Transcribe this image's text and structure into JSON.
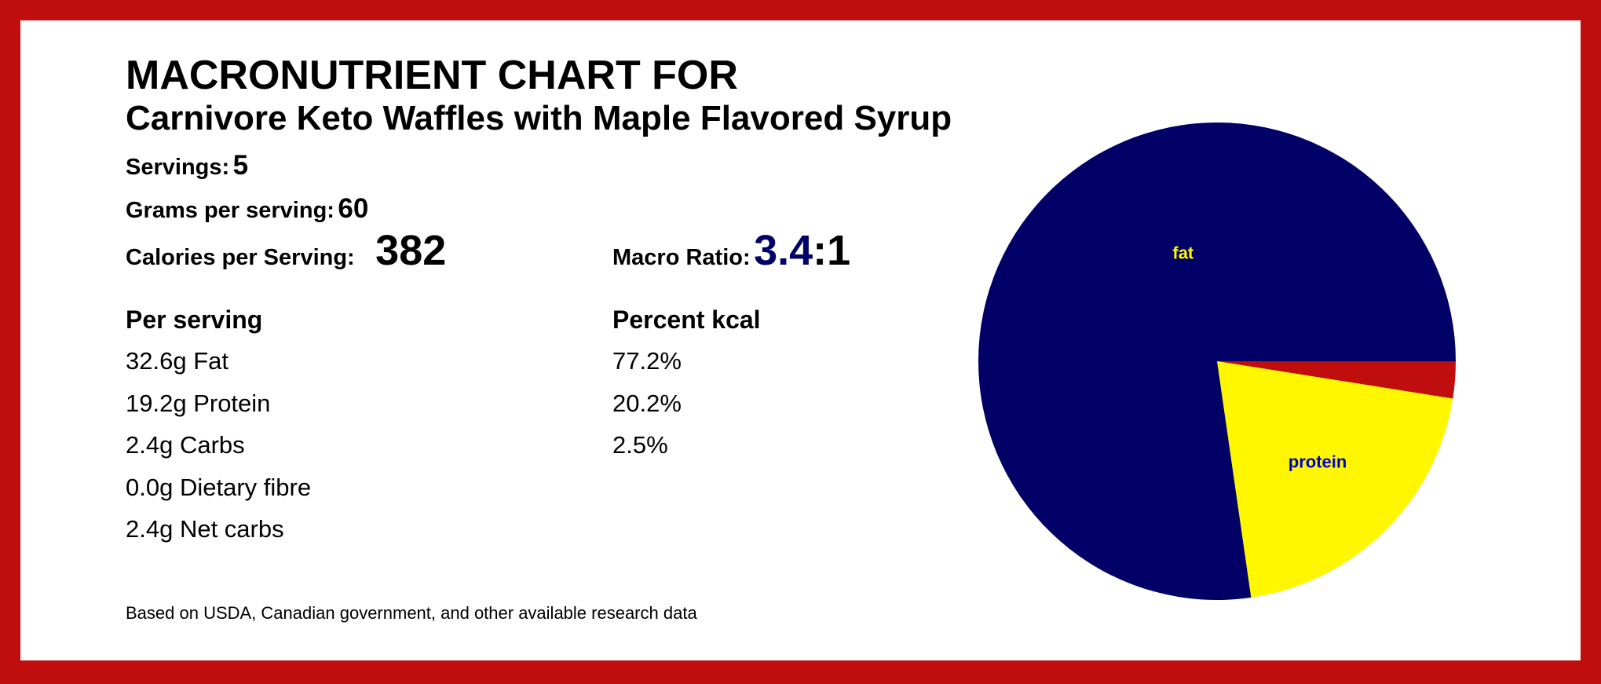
{
  "title": "MACRONUTRIENT CHART FOR",
  "recipe_name": "Carnivore Keto Waffles with Maple Flavored Syrup",
  "servings": {
    "label": "Servings:",
    "value": "5"
  },
  "grams_per_serving": {
    "label": "Grams per serving:",
    "value": "60"
  },
  "calories_per_serving": {
    "label": "Calories per Serving:",
    "value": "382"
  },
  "macro_ratio": {
    "label": "Macro Ratio:",
    "value": "3.4",
    "suffix": ":1"
  },
  "per_serving": {
    "header": "Per serving",
    "rows": [
      "32.6g Fat",
      "19.2g Protein",
      "2.4g Carbs",
      "0.0g Dietary fibre",
      "2.4g Net carbs"
    ]
  },
  "percent_kcal": {
    "header": "Percent kcal",
    "rows": [
      "77.2%",
      "20.2%",
      "2.5%"
    ]
  },
  "footer": "Based on USDA, Canadian government, and other available research data",
  "colors": {
    "border": "#c00d0d",
    "fat": "#000066",
    "protein": "#fff700",
    "carbs": "#c00d0d",
    "ratio": "#000066"
  },
  "chart_data": {
    "type": "pie",
    "title": "",
    "slices": [
      {
        "label": "carbs",
        "value": 2.5,
        "color": "#c00d0d",
        "show_label": false,
        "label_color": ""
      },
      {
        "label": "protein",
        "value": 20.2,
        "color": "#fff700",
        "show_label": true,
        "label_color": "#0000cc"
      },
      {
        "label": "fat",
        "value": 77.2,
        "color": "#000066",
        "show_label": true,
        "label_color": "#fff700"
      }
    ],
    "start_angle": "3 o'clock",
    "direction": "clockwise"
  }
}
